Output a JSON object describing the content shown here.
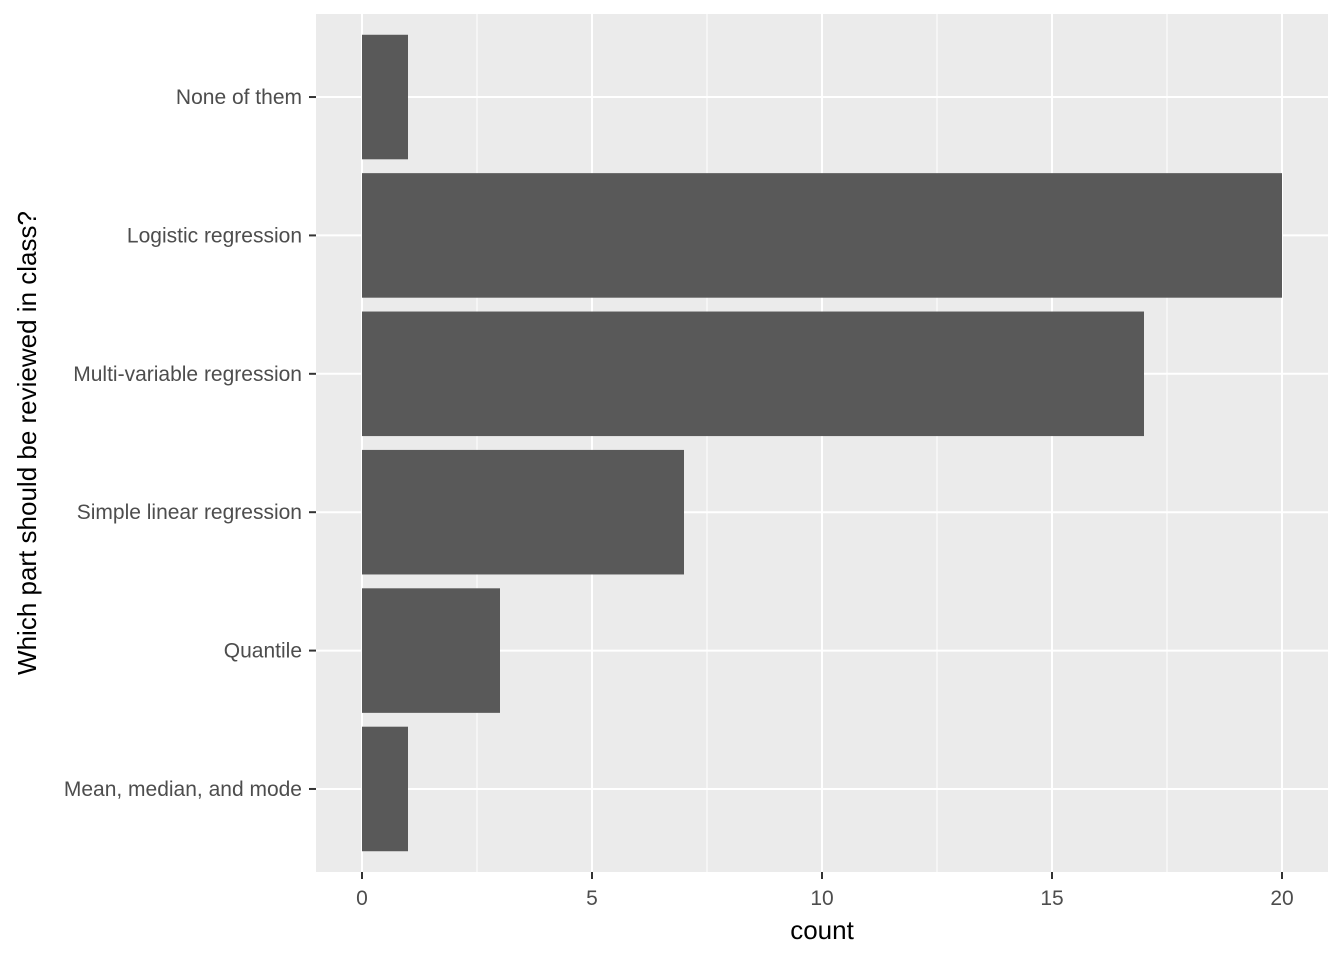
{
  "chart_data": {
    "type": "bar",
    "orientation": "horizontal",
    "categories": [
      "Mean, median, and mode",
      "Quantile",
      "Simple linear regression",
      "Multi-variable regression",
      "Logistic regression",
      "None of them"
    ],
    "values": [
      1,
      3,
      7,
      17,
      20,
      1
    ],
    "xlabel": "count",
    "ylabel": "Which part should be reviewed in class?",
    "xlim": [
      -1,
      21
    ],
    "x_ticks": [
      0,
      5,
      10,
      15,
      20
    ],
    "x_minor_ticks": [
      2.5,
      7.5,
      12.5,
      17.5
    ],
    "grid": true,
    "colors": {
      "panel": "#ebebeb",
      "bar": "#595959",
      "grid": "#ffffff"
    }
  }
}
